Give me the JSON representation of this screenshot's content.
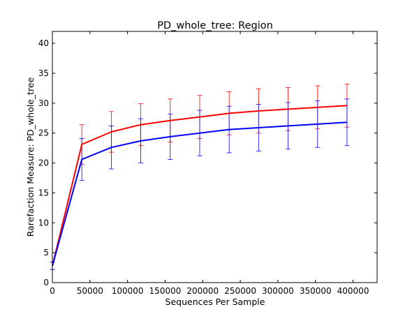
{
  "chart_data": {
    "type": "line",
    "title": "PD_whole_tree: Region",
    "xlabel": "Sequences Per Sample",
    "ylabel": "Rarefaction Measure: PD_whole_tree",
    "xlim": [
      0,
      432000
    ],
    "ylim": [
      0,
      42
    ],
    "x_ticks": [
      0,
      50000,
      100000,
      150000,
      200000,
      250000,
      300000,
      350000,
      400000
    ],
    "x_tick_labels": [
      "0",
      "50000",
      "100000",
      "150000",
      "200000",
      "250000",
      "300000",
      "350000",
      "400000"
    ],
    "y_ticks": [
      0,
      5,
      10,
      15,
      20,
      25,
      30,
      35,
      40
    ],
    "y_tick_labels": [
      "0",
      "5",
      "10",
      "15",
      "20",
      "25",
      "30",
      "35",
      "40"
    ],
    "grid": false,
    "legend": "none",
    "x": [
      10,
      39200,
      78400,
      117600,
      156800,
      196000,
      235200,
      274400,
      313600,
      352800,
      392000
    ],
    "series": [
      {
        "color": "#ff0000",
        "values": [
          2.8,
          23.1,
          25.2,
          26.4,
          27.1,
          27.7,
          28.3,
          28.7,
          29.0,
          29.3,
          29.6
        ],
        "error": [
          0.6,
          3.3,
          3.4,
          3.5,
          3.6,
          3.6,
          3.6,
          3.7,
          3.6,
          3.6,
          3.6
        ]
      },
      {
        "color": "#0000ff",
        "values": [
          2.8,
          20.6,
          22.6,
          23.7,
          24.4,
          25.0,
          25.6,
          25.9,
          26.2,
          26.5,
          26.8
        ],
        "error": [
          0.6,
          3.5,
          3.6,
          3.7,
          3.8,
          3.8,
          3.9,
          3.9,
          3.9,
          3.9,
          3.9
        ]
      }
    ]
  }
}
